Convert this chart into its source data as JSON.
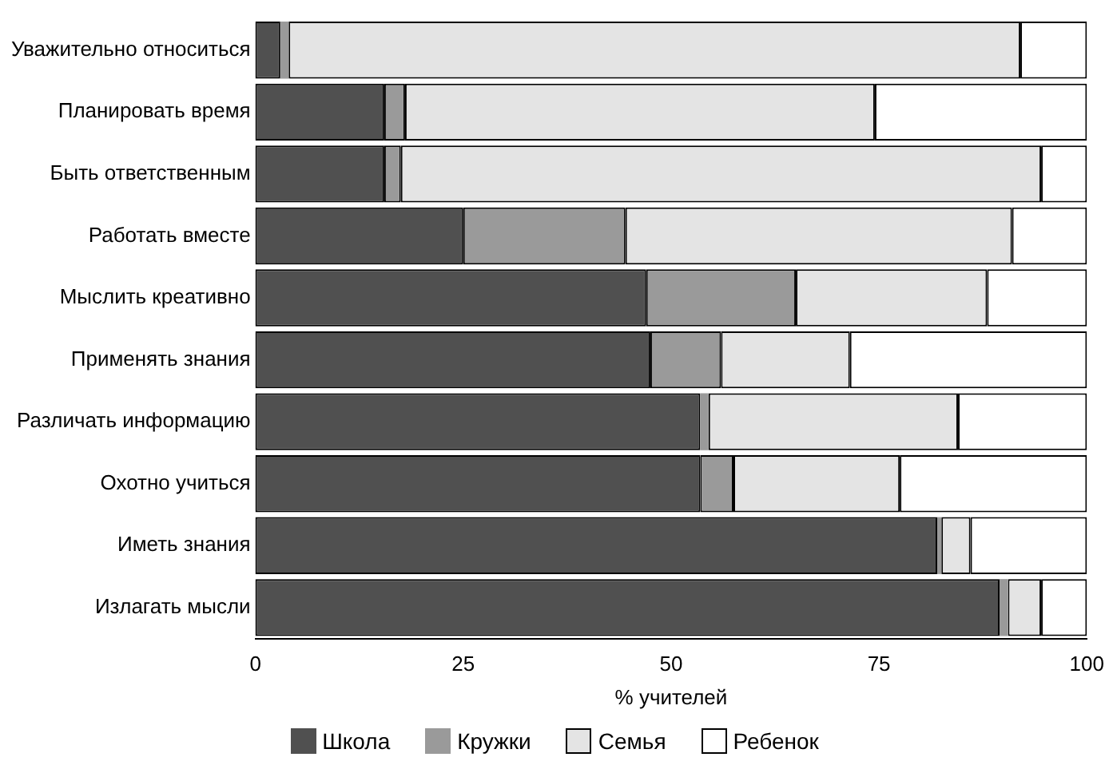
{
  "chart_data": {
    "type": "bar",
    "orientation": "horizontal",
    "stacked": true,
    "xlabel": "% учителей",
    "categories": [
      "Уважительно относиться",
      "Планировать время",
      "Быть ответственным",
      "Работать вместе",
      "Мыслить креативно",
      "Применять знания",
      "Различать информацию",
      "Охотно учиться",
      "Иметь знания",
      "Излагать мысли"
    ],
    "series": [
      {
        "name": "Школа",
        "color": "#505050",
        "values": [
          3,
          15.5,
          15.5,
          25,
          47,
          47.5,
          53.5,
          53.5,
          82,
          89.5
        ]
      },
      {
        "name": "Кружки",
        "color": "#9a9a9a",
        "values": [
          1,
          2.5,
          2,
          19.5,
          18,
          8.5,
          1,
          4,
          0.5,
          1
        ]
      },
      {
        "name": "Семья",
        "color": "#e4e4e4",
        "values": [
          88,
          56.5,
          77,
          46.5,
          23,
          15.5,
          30,
          20,
          3.5,
          4
        ]
      },
      {
        "name": "Ребенок",
        "color": "#ffffff",
        "values": [
          8,
          25.5,
          5.5,
          9,
          12,
          28.5,
          15.5,
          22.5,
          14,
          5.5
        ]
      }
    ],
    "xlim": [
      0,
      100
    ],
    "xticks": [
      0,
      25,
      50,
      75,
      100
    ],
    "grid": false,
    "legend": "bottom"
  }
}
